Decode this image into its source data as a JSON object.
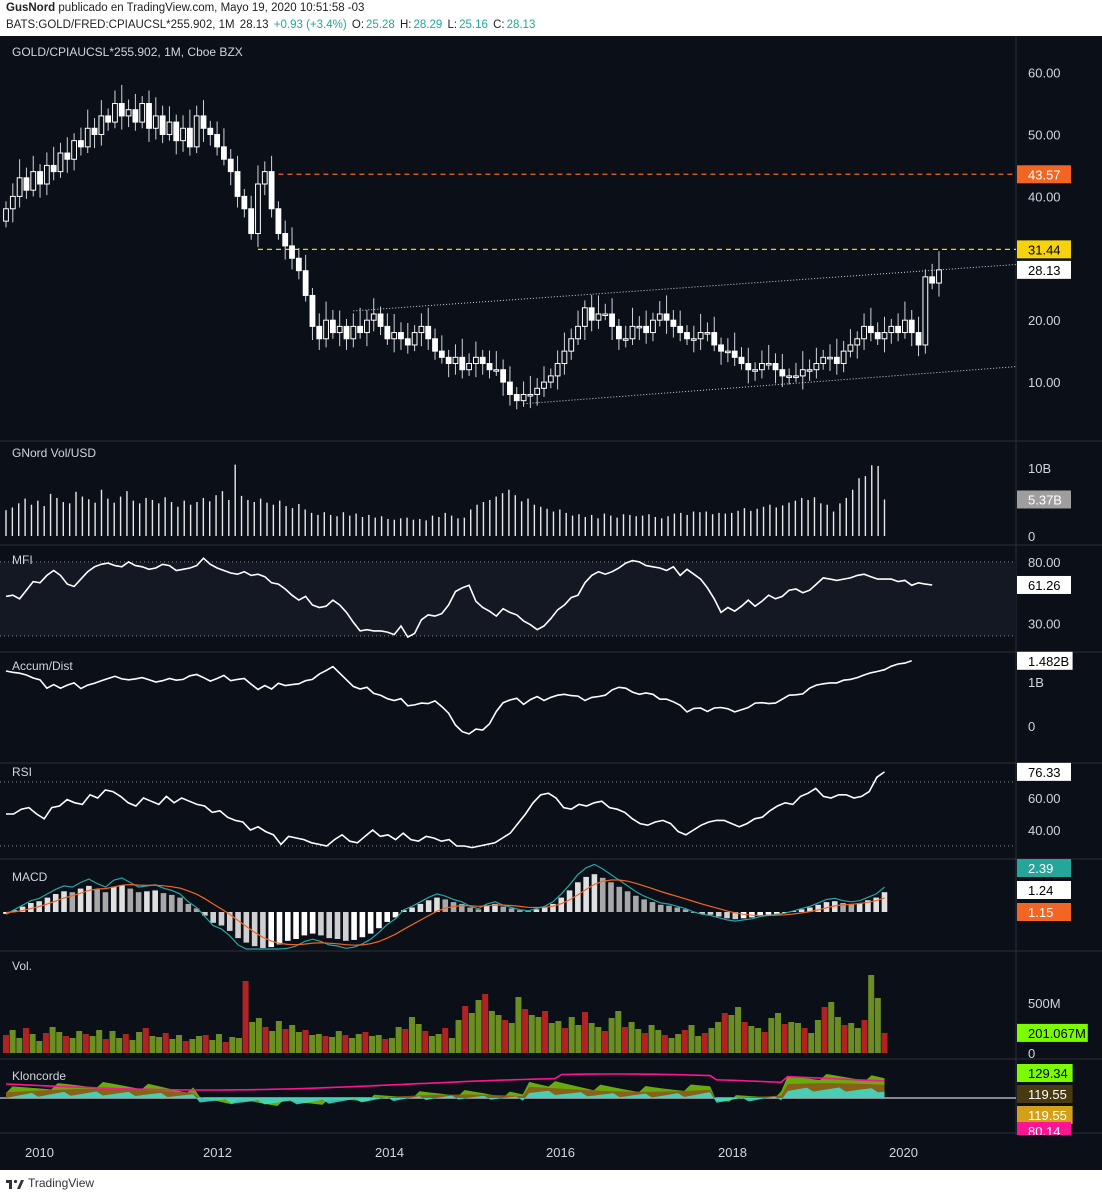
{
  "header": {
    "author": "GusNord",
    "published": "publicado en TradingView.com, Mayo 19, 2020 10:51:58 -03",
    "symbol": "BATS:GOLD/FRED:CPIAUCSL*255.902, 1M",
    "last": "28.13",
    "change": "+0.93 (+3.4%)",
    "o_label": "O:",
    "o_value": "25.28",
    "h_label": "H:",
    "h_value": "28.29",
    "l_label": "L:",
    "l_value": "25.16",
    "c_label": "C:",
    "c_value": "28.13"
  },
  "footer": {
    "logo_text": "TradingView"
  },
  "colors": {
    "background": "#0b1018",
    "up": "#ffffff",
    "down": "#9aa0a6",
    "orange_level": "#f26522",
    "yellow_level": "#f5d20b",
    "macd_line": "#29a3a3",
    "signal_line": "#f26522",
    "vol_green": "#6b8e23",
    "vol_red": "#b22222",
    "klon_green": "#7ac70c",
    "klon_brown": "#8b5a1a",
    "klon_cyan": "#40e0d0",
    "klon_pink": "#ff1493"
  },
  "chart_data": [
    {
      "type": "candlestick",
      "title": "GOLD/CPIAUCSL*255.902, 1M, Cboe BZX",
      "ylim": [
        0,
        63
      ],
      "y_ticks": [
        "60.00",
        "50.00",
        "40.00",
        "30.00",
        "20.00",
        "10.00"
      ],
      "x_ticks": [
        "2010",
        "2012",
        "2014",
        "2016",
        "2018",
        "2020"
      ],
      "last_price_label": "28.13",
      "levels": [
        {
          "name": "resistance",
          "value": 43.57,
          "label": "43.57",
          "color": "#f26522"
        },
        {
          "name": "support",
          "value": 31.44,
          "label": "31.44",
          "color": "#f5d20b"
        }
      ],
      "channel": {
        "upper": [
          {
            "x": "2013-06",
            "y": 21.5
          },
          {
            "x": "2021-03",
            "y": 29.0
          }
        ],
        "lower": [
          {
            "x": "2015-07",
            "y": 6.5
          },
          {
            "x": "2021-03",
            "y": 12.5
          }
        ]
      },
      "closes": [
        38,
        40,
        43,
        41,
        44,
        42,
        45,
        44,
        47,
        46,
        49,
        48,
        51,
        50,
        53,
        52,
        55,
        53,
        54,
        52,
        55,
        51,
        53,
        50,
        52,
        49,
        51,
        48,
        53,
        51,
        50,
        48,
        46,
        44,
        40,
        38,
        34,
        42,
        44,
        38,
        34,
        32,
        30,
        28,
        24,
        19,
        17,
        20,
        18,
        19,
        17,
        19,
        18,
        20,
        21,
        19,
        17,
        18,
        17,
        16,
        18,
        19,
        17,
        15,
        14,
        13,
        14,
        12,
        13,
        14,
        13,
        12,
        12,
        10,
        8,
        7,
        8,
        8,
        9,
        10,
        11,
        13,
        15,
        17,
        19,
        22,
        20,
        21,
        21,
        19,
        17,
        17,
        19,
        19,
        18,
        20,
        21,
        20,
        19,
        18,
        17,
        17,
        18,
        18,
        16,
        15,
        15,
        14,
        13,
        12,
        12,
        13,
        13,
        12,
        11,
        11,
        11,
        12,
        12,
        13,
        14,
        14,
        13,
        15,
        16,
        17,
        19,
        18,
        17,
        18,
        19,
        18,
        20,
        18,
        16,
        27,
        26,
        28.13
      ]
    },
    {
      "type": "bar",
      "title": "GNord Vol/USD",
      "y_ticks": [
        "10B",
        "0"
      ],
      "last_label": "5.37B",
      "values": [
        3.8,
        4.2,
        4.8,
        5.5,
        4.6,
        5.2,
        4.4,
        6.2,
        5.6,
        5.0,
        4.8,
        6.5,
        5.8,
        5.4,
        4.9,
        6.8,
        5.5,
        4.9,
        5.8,
        6.6,
        5.2,
        4.8,
        5.6,
        5.3,
        4.8,
        5.7,
        5.0,
        4.3,
        5.2,
        4.6,
        5.0,
        5.6,
        5.1,
        6.0,
        6.6,
        5.3,
        10.5,
        5.9,
        5.3,
        5.0,
        5.5,
        4.9,
        4.6,
        5.2,
        4.4,
        4.1,
        4.7,
        3.9,
        3.4,
        3.1,
        3.5,
        3.1,
        2.9,
        3.5,
        3.0,
        3.3,
        2.8,
        3.1,
        2.7,
        2.9,
        2.5,
        2.4,
        2.6,
        2.7,
        2.4,
        2.5,
        2.3,
        3.0,
        2.8,
        3.4,
        3.0,
        2.6,
        2.7,
        3.9,
        4.6,
        5.0,
        5.3,
        5.8,
        6.3,
        6.8,
        6.0,
        5.1,
        5.5,
        4.6,
        4.3,
        4.0,
        3.6,
        3.9,
        3.4,
        3.0,
        3.2,
        2.8,
        3.1,
        2.6,
        3.3,
        3.0,
        2.7,
        3.2,
        3.1,
        2.9,
        3.0,
        3.2,
        2.8,
        2.6,
        2.9,
        3.3,
        3.4,
        3.1,
        3.6,
        3.5,
        3.6,
        3.2,
        3.4,
        3.3,
        3.4,
        3.7,
        4.1,
        3.7,
        4.0,
        4.3,
        4.6,
        4.2,
        4.5,
        4.9,
        5.2,
        5.6,
        5.3,
        5.7,
        4.8,
        4.6,
        3.6,
        4.8,
        5.6,
        6.8,
        8.5,
        8.8,
        10.4,
        10.3,
        5.37
      ]
    },
    {
      "type": "line",
      "title": "MFI",
      "ylim": [
        15,
        88
      ],
      "y_ticks": [
        "80.00",
        "30.00"
      ],
      "bands": [
        80,
        20
      ],
      "last_label": "61.26",
      "values": [
        52,
        53,
        50,
        57,
        64,
        63,
        69,
        73,
        69,
        62,
        60,
        66,
        72,
        76,
        78,
        79,
        77,
        76,
        80,
        77,
        76,
        74,
        75,
        78,
        77,
        73,
        74,
        75,
        77,
        83,
        78,
        75,
        73,
        71,
        70,
        72,
        69,
        70,
        68,
        63,
        62,
        58,
        53,
        49,
        52,
        45,
        43,
        44,
        49,
        45,
        39,
        31,
        24,
        25,
        24,
        24,
        23,
        21,
        28,
        19,
        22,
        33,
        37,
        36,
        38,
        45,
        56,
        59,
        61,
        48,
        43,
        40,
        36,
        42,
        39,
        37,
        32,
        29,
        25,
        28,
        34,
        41,
        45,
        51,
        53,
        63,
        69,
        72,
        70,
        72,
        75,
        79,
        81,
        80,
        77,
        76,
        75,
        73,
        76,
        69,
        74,
        70,
        66,
        59,
        50,
        39,
        43,
        40,
        44,
        49,
        44,
        48,
        53,
        50,
        52,
        57,
        58,
        55,
        57,
        62,
        67,
        66,
        65,
        66,
        67,
        69,
        70,
        68,
        66,
        66,
        66,
        64,
        65,
        61,
        63,
        62,
        61.26
      ]
    },
    {
      "type": "line",
      "title": "Accum/Dist",
      "y_ticks": [
        "1B",
        "0"
      ],
      "last_label": "1.482B",
      "values": [
        1.25,
        1.22,
        1.2,
        1.16,
        1.09,
        1.05,
        0.86,
        0.94,
        0.86,
        0.93,
        0.98,
        0.85,
        0.93,
        0.97,
        1.03,
        1.08,
        1.13,
        1.07,
        1.05,
        1.07,
        1.1,
        1.05,
        1.0,
        1.03,
        1.08,
        1.04,
        1.06,
        1.14,
        1.17,
        1.1,
        1.02,
        1.08,
        1.15,
        1.03,
        1.06,
        1.08,
        0.95,
        0.83,
        0.92,
        0.84,
        0.97,
        0.92,
        0.94,
        0.96,
        1.03,
        1.06,
        1.18,
        1.26,
        1.35,
        1.2,
        1.05,
        0.9,
        0.84,
        0.88,
        0.74,
        0.7,
        0.62,
        0.58,
        0.62,
        0.46,
        0.48,
        0.52,
        0.51,
        0.57,
        0.44,
        0.29,
        0.02,
        -0.13,
        -0.18,
        -0.07,
        -0.09,
        0.05,
        0.33,
        0.53,
        0.59,
        0.63,
        0.49,
        0.6,
        0.67,
        0.58,
        0.65,
        0.7,
        0.72,
        0.69,
        0.68,
        0.58,
        0.65,
        0.67,
        0.7,
        0.82,
        0.88,
        0.86,
        0.77,
        0.72,
        0.75,
        0.72,
        0.61,
        0.61,
        0.55,
        0.47,
        0.32,
        0.4,
        0.41,
        0.33,
        0.41,
        0.42,
        0.39,
        0.32,
        0.37,
        0.42,
        0.52,
        0.53,
        0.51,
        0.52,
        0.61,
        0.7,
        0.71,
        0.73,
        0.86,
        0.93,
        0.96,
        0.98,
        0.98,
        1.04,
        1.06,
        1.1,
        1.16,
        1.21,
        1.24,
        1.28,
        1.36,
        1.41,
        1.43,
        1.482
      ]
    },
    {
      "type": "line",
      "title": "RSI",
      "ylim": [
        25,
        80
      ],
      "y_ticks": [
        "60.00",
        "40.00"
      ],
      "bands": [
        70,
        30
      ],
      "last_label": "76.33",
      "values": [
        50,
        50,
        53,
        54,
        50,
        47,
        54,
        55,
        59,
        57,
        56,
        62,
        60,
        65,
        64,
        61,
        57,
        55,
        60,
        58,
        56,
        61,
        57,
        60,
        58,
        56,
        55,
        51,
        52,
        48,
        46,
        45,
        40,
        42,
        39,
        37,
        31,
        36,
        35,
        34,
        32,
        31,
        30,
        34,
        37,
        33,
        32,
        36,
        40,
        36,
        37,
        34,
        38,
        34,
        33,
        36,
        35,
        33,
        34,
        30,
        30,
        29,
        30,
        31,
        32,
        35,
        38,
        44,
        50,
        57,
        62,
        63,
        60,
        54,
        53,
        56,
        55,
        57,
        58,
        54,
        53,
        51,
        47,
        44,
        43,
        45,
        46,
        44,
        39,
        37,
        40,
        43,
        45,
        46,
        46,
        44,
        42,
        44,
        47,
        48,
        52,
        55,
        57,
        56,
        61,
        63,
        66,
        61,
        60,
        62,
        62,
        60,
        61,
        64,
        73,
        76.33
      ]
    },
    {
      "type": "bar",
      "title": "MACD",
      "last_labels": [
        "2.39",
        "1.24",
        "1.15"
      ],
      "histogram": [
        -0.2,
        0.2,
        0.6,
        1.0,
        1.2,
        1.6,
        2.0,
        2.3,
        2.2,
        2.6,
        2.9,
        2.5,
        2.2,
        2.8,
        3.0,
        2.6,
        2.2,
        2.3,
        2.4,
        2.1,
        1.9,
        1.6,
        0.9,
        0.4,
        -0.4,
        -1.2,
        -1.5,
        -2.1,
        -2.9,
        -3.4,
        -3.8,
        -4.0,
        -3.9,
        -3.6,
        -3.2,
        -3.0,
        -2.6,
        -2.4,
        -2.6,
        -2.9,
        -3.0,
        -3.2,
        -3.1,
        -2.8,
        -2.4,
        -1.8,
        -1.1,
        -0.6,
        0.2,
        0.5,
        0.9,
        1.3,
        1.6,
        1.4,
        1.1,
        0.9,
        0.5,
        0.3,
        0.7,
        0.9,
        0.6,
        0.4,
        0.2,
        0.1,
        0.3,
        0.5,
        0.9,
        1.6,
        2.4,
        3.3,
        3.9,
        4.2,
        3.8,
        3.3,
        2.8,
        2.3,
        1.8,
        1.4,
        1.1,
        0.8,
        0.7,
        0.5,
        0.3,
        0.0,
        -0.2,
        -0.3,
        -0.5,
        -0.7,
        -0.8,
        -0.7,
        -0.6,
        -0.4,
        -0.3,
        -0.2,
        -0.1,
        0.1,
        0.3,
        0.5,
        0.8,
        1.1,
        1.2,
        1.0,
        0.9,
        1.0,
        1.3,
        1.6,
        2.2
      ]
    },
    {
      "type": "bar",
      "title": "Vol.",
      "y_ticks": [
        "500M",
        "0"
      ],
      "last_label": "201.067M",
      "values": [
        180,
        230,
        150,
        250,
        190,
        120,
        200,
        260,
        210,
        170,
        150,
        220,
        190,
        170,
        230,
        140,
        220,
        150,
        190,
        130,
        210,
        250,
        170,
        160,
        200,
        140,
        180,
        120,
        140,
        170,
        180,
        130,
        190,
        110,
        160,
        150,
        720,
        310,
        350,
        260,
        220,
        320,
        240,
        280,
        210,
        230,
        180,
        190,
        170,
        160,
        220,
        180,
        150,
        190,
        210,
        170,
        180,
        140,
        150,
        260,
        240,
        360,
        290,
        220,
        170,
        190,
        250,
        150,
        330,
        470,
        400,
        530,
        590,
        420,
        380,
        330,
        300,
        560,
        440,
        380,
        360,
        420,
        300,
        320,
        250,
        360,
        280,
        410,
        300,
        260,
        220,
        350,
        420,
        260,
        310,
        240,
        200,
        280,
        230,
        180,
        150,
        190,
        230,
        280,
        170,
        200,
        250,
        310,
        400,
        380,
        460,
        310,
        270,
        250,
        210,
        350,
        400,
        290,
        310,
        300,
        250,
        200,
        330,
        460,
        510,
        360,
        280,
        300,
        250,
        330,
        780,
        550,
        201.067
      ]
    },
    {
      "type": "area",
      "title": "Kloncorde",
      "last_labels": [
        "129.34",
        "119.55",
        "119.55",
        "80.14"
      ]
    }
  ]
}
